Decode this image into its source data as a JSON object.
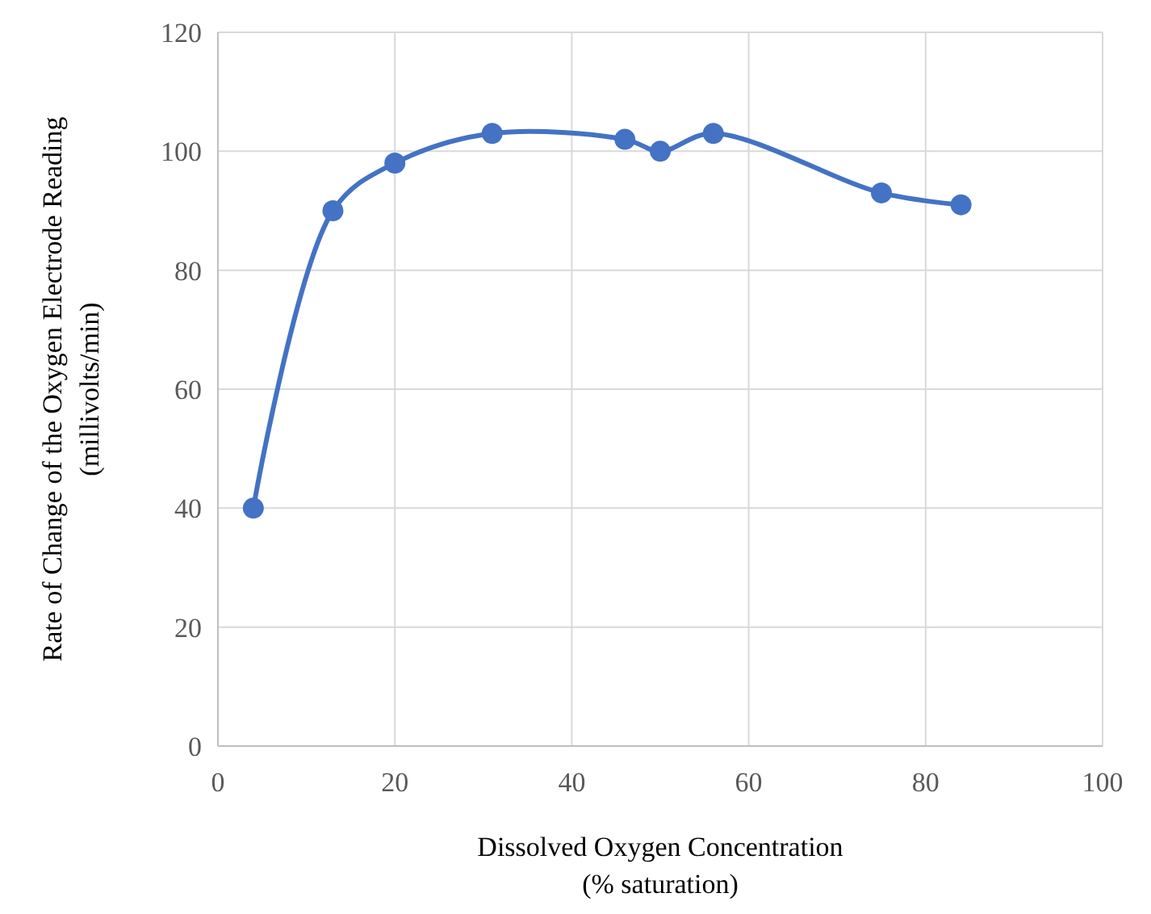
{
  "chart_data": {
    "type": "line",
    "xlabel": "Dissolved Oxygen Concentration\n(% saturation)",
    "ylabel": "Rate of Change of the Oxygen Electrode Reading\n(millivolts/min)",
    "x": [
      4,
      13,
      20,
      31,
      46,
      50,
      56,
      75,
      84
    ],
    "series": [
      {
        "color": "#4472c4",
        "values": [
          40,
          90,
          98,
          103,
          102,
          100,
          103,
          93,
          91
        ]
      }
    ],
    "xlim": [
      0,
      100
    ],
    "xticks": [
      0,
      20,
      40,
      60,
      80,
      100
    ],
    "ylim": [
      0,
      120
    ],
    "yticks": [
      0,
      20,
      40,
      60,
      80,
      100,
      120
    ],
    "grid": true,
    "marker": "circle",
    "line_style": "solid"
  }
}
